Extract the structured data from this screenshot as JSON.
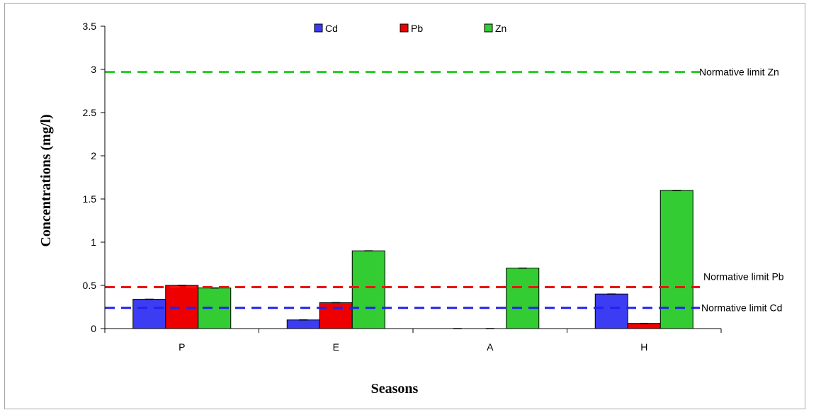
{
  "chart_data": {
    "type": "bar",
    "title": "",
    "xlabel": "Seasons",
    "ylabel": "Concentrations (mg/l)",
    "categories": [
      "P",
      "E",
      "A",
      "H"
    ],
    "ylim": [
      0,
      3.5
    ],
    "yticks": [
      "0",
      "0.5",
      "1",
      "1.5",
      "2",
      "2.5",
      "3",
      "3.5"
    ],
    "legend_position": "top-center",
    "grid": false,
    "series": [
      {
        "name": "Cd",
        "color": "#3c3cf2",
        "values": [
          0.34,
          0.1,
          0.0,
          0.4
        ]
      },
      {
        "name": "Pb",
        "color": "#ee0000",
        "values": [
          0.5,
          0.3,
          0.0,
          0.06
        ]
      },
      {
        "name": "Zn",
        "color": "#33cc33",
        "values": [
          0.47,
          0.9,
          0.7,
          1.6
        ]
      }
    ],
    "reference_lines": [
      {
        "label": "Normative limit Zn",
        "value": 2.97,
        "color": "#22cc22"
      },
      {
        "label": "Normative limit Pb",
        "value": 0.48,
        "color": "#ee1111"
      },
      {
        "label": "Normative limit Cd",
        "value": 0.24,
        "color": "#2222ee"
      }
    ]
  }
}
